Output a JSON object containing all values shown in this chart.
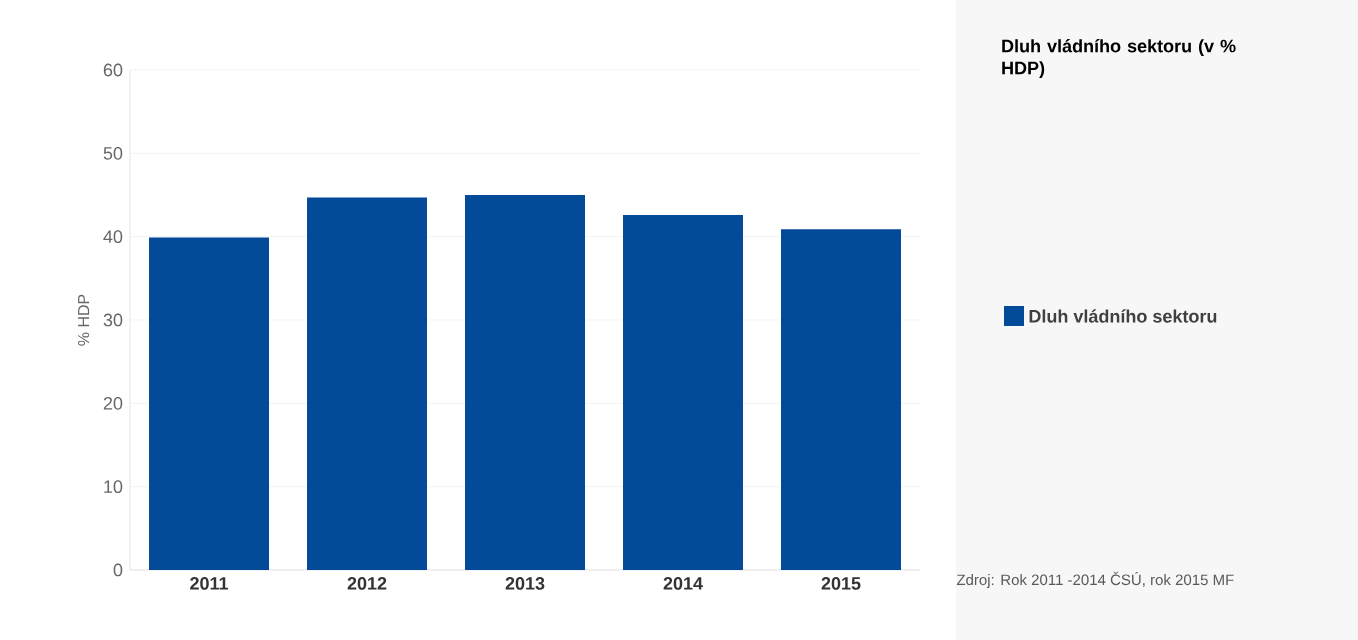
{
  "chart_data": {
    "type": "bar",
    "ylabel": "% HDP",
    "legend_title": "Dluh vládního sektoru (v % HDP)",
    "categories": [
      "2011",
      "2012",
      "2013",
      "2014",
      "2015"
    ],
    "series": [
      {
        "name": "Dluh vládního sektoru",
        "color": "#034a99",
        "values": [
          39.9,
          44.7,
          45.0,
          42.6,
          40.9
        ]
      }
    ],
    "ylim": [
      0,
      60
    ],
    "yticks": [
      0,
      10,
      20,
      30,
      40,
      50,
      60
    ],
    "grid": "y",
    "legend": "right",
    "annotations": [
      "Zdroj: Rok 2011 -2014 ČSÚ, rok 2015 MF"
    ]
  }
}
